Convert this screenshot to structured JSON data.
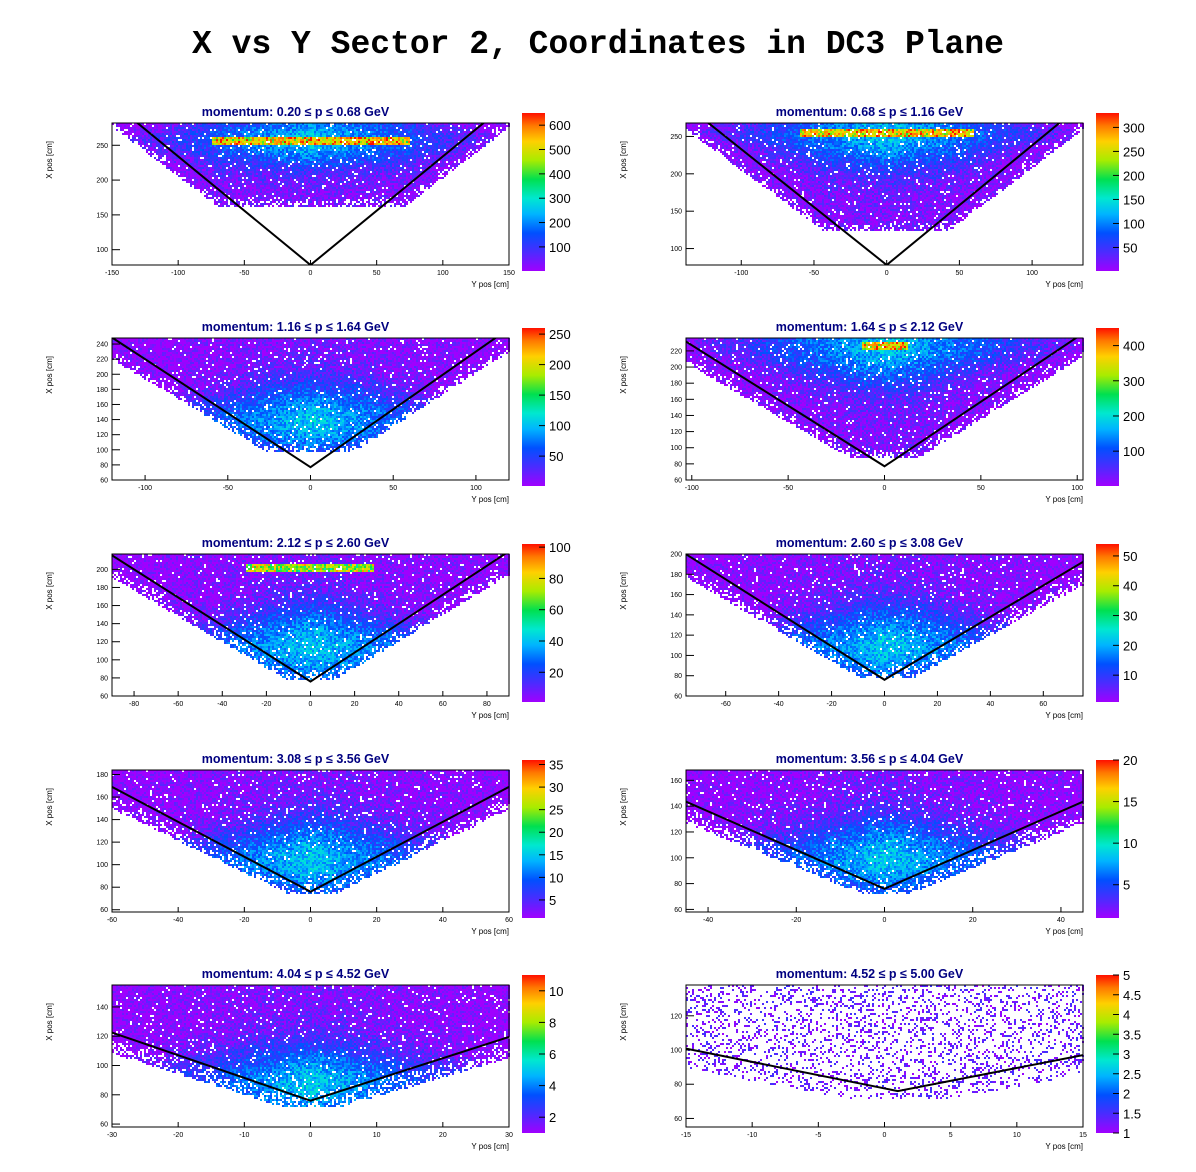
{
  "title": "X vs Y Sector 2, Coordinates in DC3 Plane",
  "chart_data": [
    {
      "type": "heatmap",
      "title": "momentum: 0.20 ≤ p ≤ 0.68 GeV",
      "xlabel": "Y pos [cm]",
      "ylabel": "X pos [cm]",
      "xlim": [
        -150,
        150
      ],
      "ylim": [
        78,
        282
      ],
      "xticks": [
        -150,
        -100,
        -50,
        0,
        50,
        100,
        150
      ],
      "yticks": [
        100,
        150,
        200,
        250
      ],
      "zlim": [
        1,
        650
      ],
      "zticks": [
        100,
        200,
        300,
        400,
        500,
        600
      ],
      "band": {
        "hot_y": 258,
        "hot_x": [
          -75,
          75
        ],
        "xmin_edge": -130,
        "ymin": 170,
        "density": "bottom-light"
      },
      "line": {
        "vertex": [
          0,
          78
        ],
        "slope_left": -1.56,
        "slope_right": 1.56
      }
    },
    {
      "type": "heatmap",
      "title": "momentum: 0.68 ≤ p ≤ 1.16 GeV",
      "xlabel": "Y pos [cm]",
      "ylabel": "X pos [cm]",
      "xlim": [
        -138,
        135
      ],
      "ylim": [
        78,
        268
      ],
      "xticks": [
        -100,
        -50,
        0,
        50,
        100
      ],
      "yticks": [
        100,
        150,
        200,
        250
      ],
      "zlim": [
        1,
        330
      ],
      "zticks": [
        50,
        100,
        150,
        200,
        250,
        300
      ],
      "band": {
        "hot_y": 255,
        "hot_x": [
          -60,
          60
        ],
        "ymin": 130
      },
      "line": {
        "vertex": [
          0,
          78
        ],
        "slope_left": -1.55,
        "slope_right": 1.6
      }
    },
    {
      "type": "heatmap",
      "title": "momentum: 1.16 ≤ p ≤ 1.64 GeV",
      "xlabel": "Y pos [cm]",
      "ylabel": "X pos [cm]",
      "xlim": [
        -120,
        120
      ],
      "ylim": [
        60,
        248
      ],
      "xticks": [
        -100,
        -50,
        0,
        50,
        100
      ],
      "yticks": [
        60,
        80,
        100,
        120,
        140,
        160,
        180,
        200,
        220,
        240
      ],
      "zlim": [
        1,
        260
      ],
      "zticks": [
        50,
        100,
        150,
        200,
        250
      ],
      "band": {
        "hot_y": 140,
        "ymin": 105
      },
      "line": {
        "vertex": [
          0,
          77
        ],
        "slope_left": -1.43,
        "slope_right": 1.53
      }
    },
    {
      "type": "heatmap",
      "title": "momentum: 1.64 ≤ p ≤ 2.12 GeV",
      "xlabel": "Y pos [cm]",
      "ylabel": "X pos [cm]",
      "xlim": [
        -103,
        103
      ],
      "ylim": [
        60,
        236
      ],
      "xticks": [
        -100,
        -50,
        0,
        50,
        100
      ],
      "yticks": [
        60,
        80,
        100,
        120,
        140,
        160,
        180,
        200,
        220
      ],
      "zlim": [
        1,
        450
      ],
      "zticks": [
        100,
        200,
        300,
        400
      ],
      "band": {
        "hot_y": 228,
        "hot_x": [
          -12,
          12
        ],
        "ymin": 95
      },
      "line": {
        "vertex": [
          0,
          77
        ],
        "slope_left": -1.5,
        "slope_right": 1.6
      }
    },
    {
      "type": "heatmap",
      "title": "momentum: 2.12 ≤ p ≤ 2.60 GeV",
      "xlabel": "Y pos [cm]",
      "ylabel": "X pos [cm]",
      "xlim": [
        -90,
        90
      ],
      "ylim": [
        60,
        217
      ],
      "xticks": [
        -80,
        -60,
        -40,
        -20,
        0,
        20,
        40,
        60,
        80
      ],
      "yticks": [
        60,
        80,
        100,
        120,
        140,
        160,
        180,
        200
      ],
      "zlim": [
        1,
        102
      ],
      "zticks": [
        20,
        40,
        60,
        80,
        100
      ],
      "band": {
        "hot_y": 115,
        "top_y": 202,
        "top_x": [
          -30,
          28
        ],
        "ymin": 85
      },
      "line": {
        "vertex": [
          0,
          76
        ],
        "slope_left": -1.55,
        "slope_right": 1.6
      }
    },
    {
      "type": "heatmap",
      "title": "momentum: 2.60 ≤ p ≤ 3.08 GeV",
      "xlabel": "Y pos [cm]",
      "ylabel": "X pos [cm]",
      "xlim": [
        -75,
        75
      ],
      "ylim": [
        60,
        200
      ],
      "xticks": [
        -60,
        -40,
        -20,
        0,
        20,
        40,
        60
      ],
      "yticks": [
        60,
        80,
        100,
        120,
        140,
        160,
        180,
        200
      ],
      "zlim": [
        1,
        54
      ],
      "zticks": [
        10,
        20,
        30,
        40,
        50
      ],
      "band": {
        "hot_y": 110,
        "ymin": 85
      },
      "line": {
        "vertex": [
          0,
          76
        ],
        "slope_left": -1.65,
        "slope_right": 1.55
      }
    },
    {
      "type": "heatmap",
      "title": "momentum: 3.08 ≤ p ≤ 3.56 GeV",
      "xlabel": "Y pos [cm]",
      "ylabel": "X pos [cm]",
      "xlim": [
        -60,
        60
      ],
      "ylim": [
        58,
        184
      ],
      "xticks": [
        -60,
        -40,
        -20,
        0,
        20,
        40,
        60
      ],
      "yticks": [
        60,
        80,
        100,
        120,
        140,
        160,
        180
      ],
      "zlim": [
        1,
        36
      ],
      "zticks": [
        5,
        10,
        15,
        20,
        25,
        30,
        35
      ],
      "band": {
        "hot_y": 105,
        "ymin": 80
      },
      "line": {
        "vertex": [
          0,
          76
        ],
        "slope_left": -1.55,
        "slope_right": 1.55
      }
    },
    {
      "type": "heatmap",
      "title": "momentum: 3.56 ≤ p ≤ 4.04 GeV",
      "xlabel": "Y pos [cm]",
      "ylabel": "X pos [cm]",
      "xlim": [
        -45,
        45
      ],
      "ylim": [
        58,
        168
      ],
      "xticks": [
        -40,
        -20,
        0,
        20,
        40
      ],
      "yticks": [
        60,
        80,
        100,
        120,
        140,
        160
      ],
      "zlim": [
        1,
        20
      ],
      "zticks": [
        5,
        10,
        15,
        20
      ],
      "band": {
        "hot_y": 100,
        "ymin": 78
      },
      "line": {
        "vertex": [
          0,
          76
        ],
        "slope_left": -1.5,
        "slope_right": 1.5
      }
    },
    {
      "type": "heatmap",
      "title": "momentum: 4.04 ≤ p ≤ 4.52 GeV",
      "xlabel": "Y pos [cm]",
      "ylabel": "X pos [cm]",
      "xlim": [
        -30,
        30
      ],
      "ylim": [
        58,
        155
      ],
      "xticks": [
        -30,
        -20,
        -10,
        0,
        10,
        20,
        30
      ],
      "yticks": [
        60,
        80,
        100,
        120,
        140
      ],
      "zlim": [
        1,
        11
      ],
      "zticks": [
        2,
        4,
        6,
        8,
        10
      ],
      "band": {
        "hot_y": 88,
        "ymin": 75
      },
      "line": {
        "vertex": [
          0,
          76
        ],
        "slope_left": -1.55,
        "slope_right": 1.45
      }
    },
    {
      "type": "heatmap",
      "title": "momentum: 4.52 ≤ p ≤ 5.00 GeV",
      "xlabel": "Y pos [cm]",
      "ylabel": "X pos [cm]",
      "xlim": [
        -15,
        15
      ],
      "ylim": [
        55,
        138
      ],
      "xticks": [
        -15,
        -10,
        -5,
        0,
        5,
        10,
        15
      ],
      "yticks": [
        60,
        80,
        100,
        120
      ],
      "zlim": [
        1,
        5
      ],
      "zticks": [
        1,
        1.5,
        2,
        2.5,
        3,
        3.5,
        4,
        4.5,
        5
      ],
      "band": {
        "hot_y": 95,
        "ymin": 70,
        "sparse": true
      },
      "line": {
        "vertex": [
          1,
          76
        ],
        "slope_left": -1.55,
        "slope_right": 1.5
      }
    }
  ]
}
